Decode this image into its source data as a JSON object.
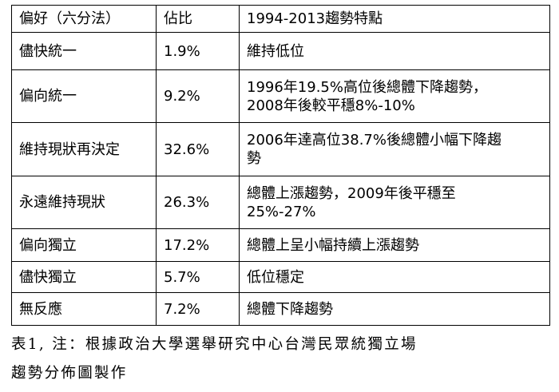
{
  "table": {
    "headers": [
      "偏好（六分法）",
      "佔比",
      "1994-2013趨勢特點"
    ],
    "rows": [
      {
        "preference": "儘快統一",
        "share": "1.9%",
        "trend": [
          "維持低位"
        ]
      },
      {
        "preference": "偏向統一",
        "share": "9.2%",
        "trend": [
          "1996年19.5%高位後總體下降趨勢，",
          "2008年後較平穩8%-10%"
        ]
      },
      {
        "preference": "維持現狀再決定",
        "share": "32.6%",
        "trend": [
          "2006年達高位38.7%後總體小幅下降趨",
          "勢"
        ]
      },
      {
        "preference": "永遠維持現狀",
        "share": "26.3%",
        "trend": [
          "總體上漲趨勢，2009年後平穩至",
          "25%-27%"
        ]
      },
      {
        "preference": "偏向獨立",
        "share": "17.2%",
        "trend": [
          "總體上呈小幅持續上漲趨勢"
        ]
      },
      {
        "preference": "儘快獨立",
        "share": "5.7%",
        "trend": [
          "低位穩定"
        ]
      },
      {
        "preference": "無反應",
        "share": "7.2%",
        "trend": [
          "總體下降趨勢"
        ]
      }
    ]
  },
  "note": {
    "lines": [
      "表1, 注：根據政治大學選舉研究中心台灣民眾統獨立場",
      "趨勢分佈圖製作"
    ]
  }
}
